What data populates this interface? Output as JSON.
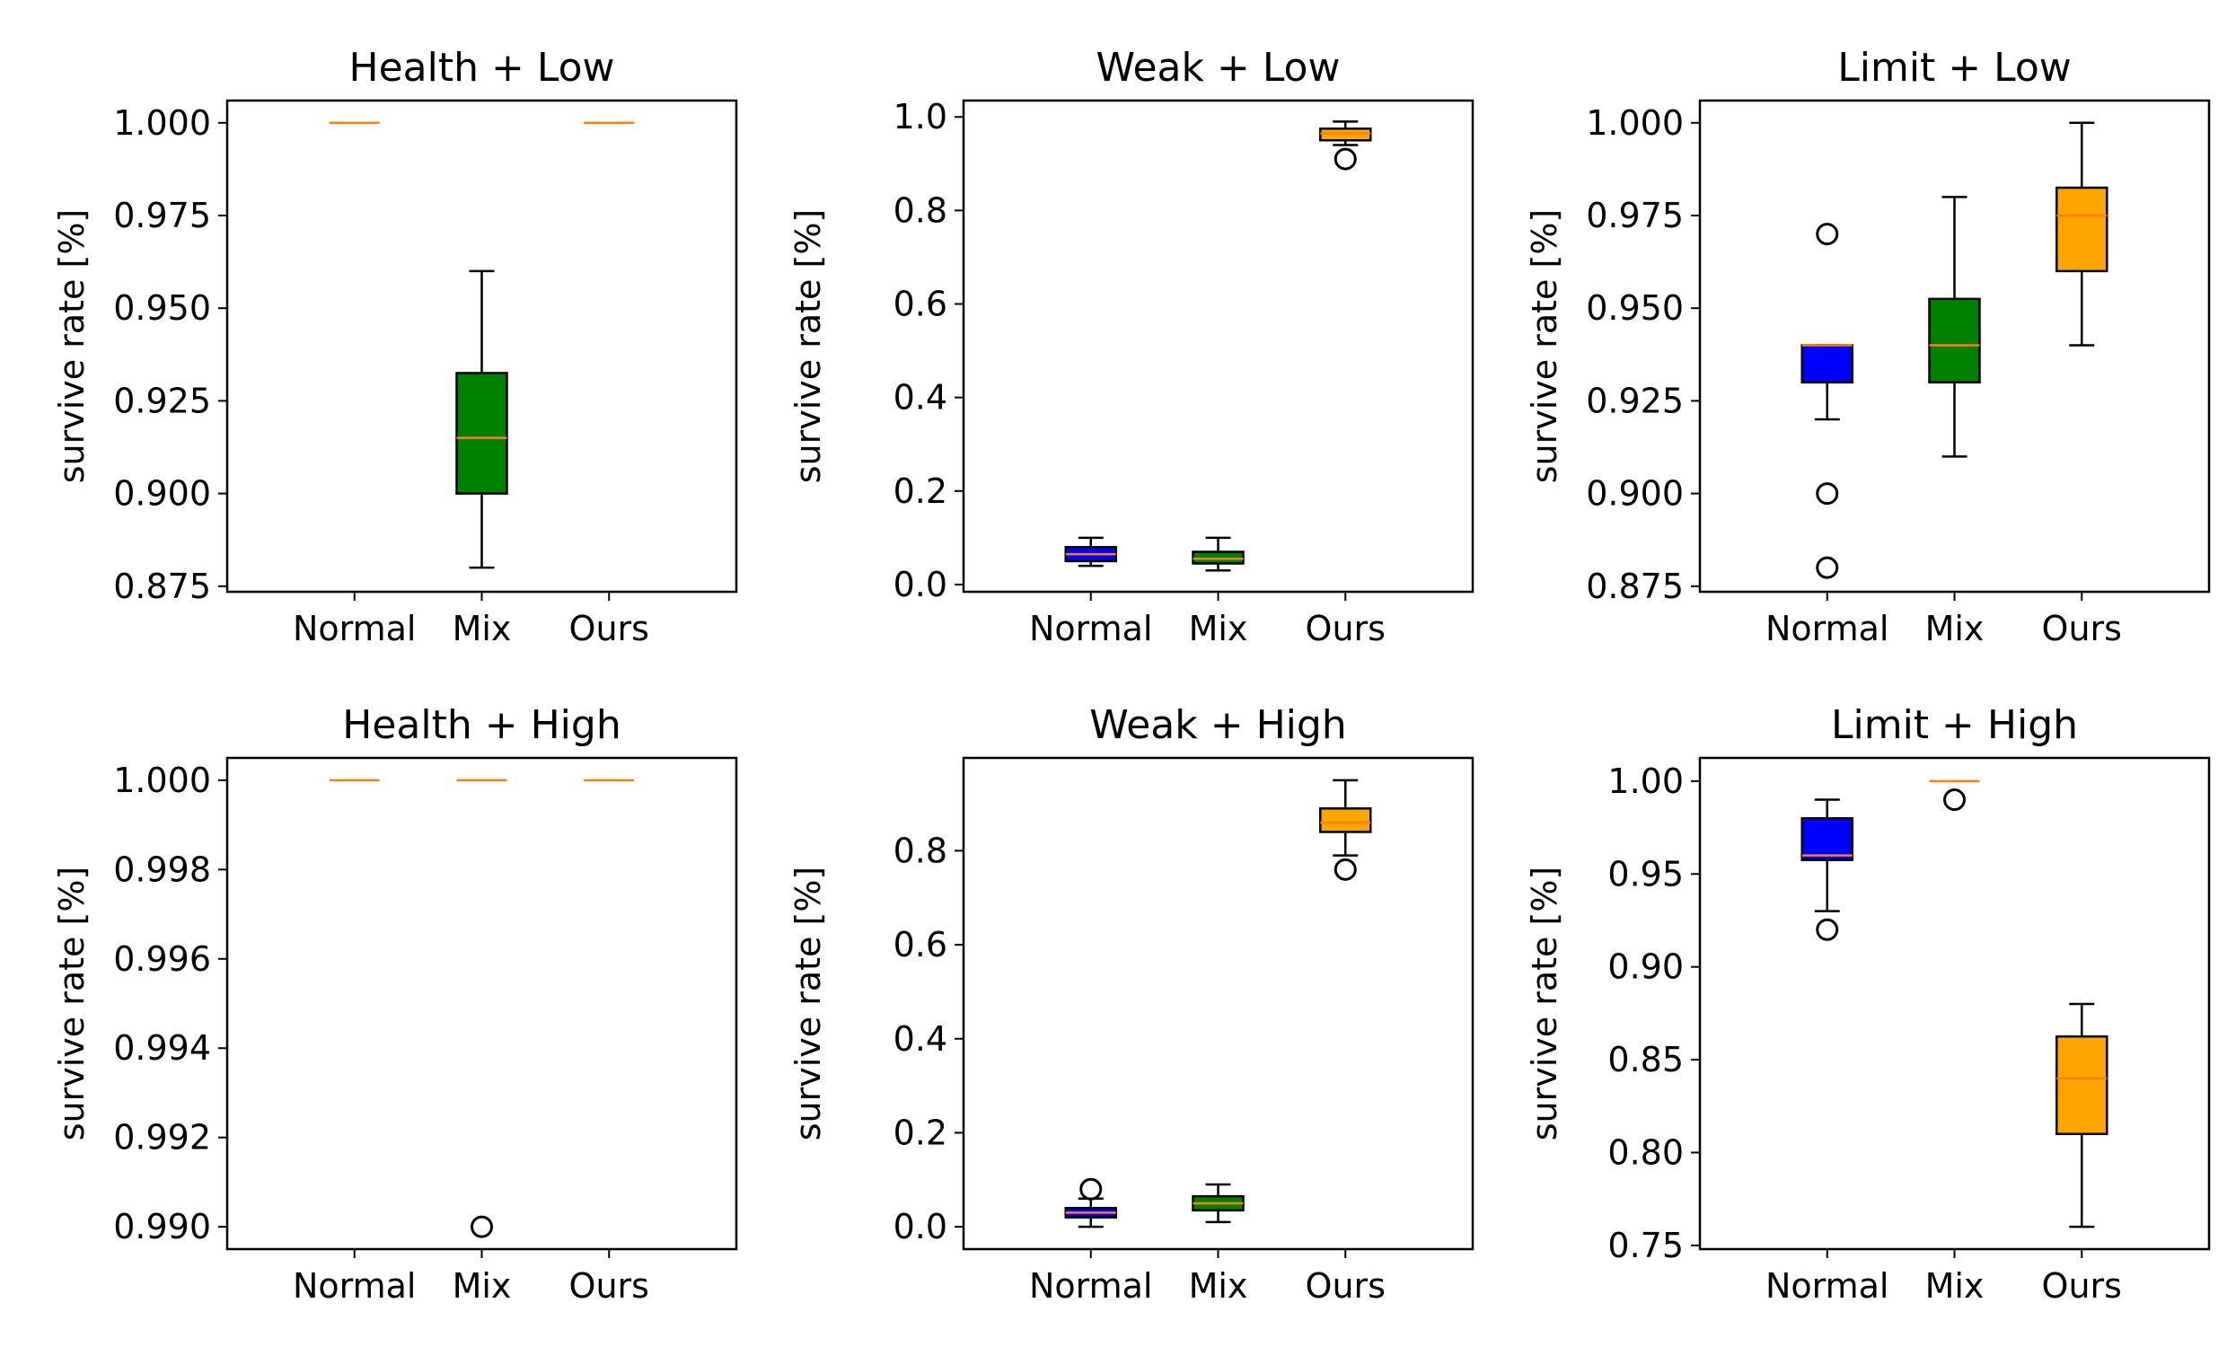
{
  "chart_data": [
    {
      "type": "box",
      "title": "Health + Low",
      "ylabel": "survive rate [%]",
      "categories": [
        "Normal",
        "Mix",
        "Ours"
      ],
      "yticks": [
        "0.875",
        "0.900",
        "0.925",
        "0.950",
        "0.975",
        "1.000"
      ],
      "ylim": [
        0.8735,
        1.006
      ],
      "boxes": [
        {
          "min": 1.0,
          "q1": 1.0,
          "median": 1.0,
          "q3": 1.0,
          "max": 1.0,
          "outliers": []
        },
        {
          "min": 0.88,
          "q1": 0.9,
          "median": 0.915,
          "q3": 0.9325,
          "max": 0.96,
          "outliers": []
        },
        {
          "min": 1.0,
          "q1": 1.0,
          "median": 1.0,
          "q3": 1.0,
          "max": 1.0,
          "outliers": []
        }
      ]
    },
    {
      "type": "box",
      "title": "Weak + Low",
      "ylabel": "survive rate [%]",
      "categories": [
        "Normal",
        "Mix",
        "Ours"
      ],
      "yticks": [
        "0.0",
        "0.2",
        "0.4",
        "0.6",
        "0.8",
        "1.0"
      ],
      "ylim": [
        -0.0155,
        1.035
      ],
      "boxes": [
        {
          "min": 0.04,
          "q1": 0.05,
          "median": 0.065,
          "q3": 0.08,
          "max": 0.1,
          "outliers": []
        },
        {
          "min": 0.03,
          "q1": 0.045,
          "median": 0.055,
          "q3": 0.07,
          "max": 0.1,
          "outliers": []
        },
        {
          "min": 0.94,
          "q1": 0.95,
          "median": 0.965,
          "q3": 0.975,
          "max": 0.99,
          "outliers": [
            0.91
          ]
        }
      ]
    },
    {
      "type": "box",
      "title": "Limit + Low",
      "ylabel": "survive rate [%]",
      "categories": [
        "Normal",
        "Mix",
        "Ours"
      ],
      "yticks": [
        "0.875",
        "0.900",
        "0.925",
        "0.950",
        "0.975",
        "1.000"
      ],
      "ylim": [
        0.8735,
        1.006
      ],
      "boxes": [
        {
          "min": 0.92,
          "q1": 0.93,
          "median": 0.94,
          "q3": 0.94,
          "max": 0.94,
          "outliers": [
            0.97,
            0.9,
            0.88
          ]
        },
        {
          "min": 0.91,
          "q1": 0.93,
          "median": 0.94,
          "q3": 0.9525,
          "max": 0.98,
          "outliers": []
        },
        {
          "min": 0.94,
          "q1": 0.96,
          "median": 0.975,
          "q3": 0.9825,
          "max": 1.0,
          "outliers": []
        }
      ]
    },
    {
      "type": "box",
      "title": "Health + High",
      "ylabel": "survive rate [%]",
      "categories": [
        "Normal",
        "Mix",
        "Ours"
      ],
      "yticks": [
        "0.990",
        "0.992",
        "0.994",
        "0.996",
        "0.998",
        "1.000"
      ],
      "ylim": [
        0.9895,
        1.0005
      ],
      "boxes": [
        {
          "min": 1.0,
          "q1": 1.0,
          "median": 1.0,
          "q3": 1.0,
          "max": 1.0,
          "outliers": []
        },
        {
          "min": 1.0,
          "q1": 1.0,
          "median": 1.0,
          "q3": 1.0,
          "max": 1.0,
          "outliers": [
            0.99
          ]
        },
        {
          "min": 1.0,
          "q1": 1.0,
          "median": 1.0,
          "q3": 1.0,
          "max": 1.0,
          "outliers": []
        }
      ]
    },
    {
      "type": "box",
      "title": "Weak + High",
      "ylabel": "survive rate [%]",
      "categories": [
        "Normal",
        "Mix",
        "Ours"
      ],
      "yticks": [
        "0.0",
        "0.2",
        "0.4",
        "0.6",
        "0.8"
      ],
      "ylim": [
        -0.0475,
        0.9975
      ],
      "boxes": [
        {
          "min": 0.0,
          "q1": 0.02,
          "median": 0.03,
          "q3": 0.04,
          "max": 0.06,
          "outliers": [
            0.08
          ]
        },
        {
          "min": 0.01,
          "q1": 0.035,
          "median": 0.05,
          "q3": 0.065,
          "max": 0.09,
          "outliers": []
        },
        {
          "min": 0.79,
          "q1": 0.84,
          "median": 0.86,
          "q3": 0.89,
          "max": 0.95,
          "outliers": [
            0.76
          ]
        }
      ]
    },
    {
      "type": "box",
      "title": "Limit + High",
      "ylabel": "survive rate [%]",
      "categories": [
        "Normal",
        "Mix",
        "Ours"
      ],
      "yticks": [
        "0.75",
        "0.80",
        "0.85",
        "0.90",
        "0.95",
        "1.00"
      ],
      "ylim": [
        0.748,
        1.0125
      ],
      "boxes": [
        {
          "min": 0.93,
          "q1": 0.9575,
          "median": 0.96,
          "q3": 0.98,
          "max": 0.99,
          "outliers": [
            0.92
          ]
        },
        {
          "min": 1.0,
          "q1": 1.0,
          "median": 1.0,
          "q3": 1.0,
          "max": 1.0,
          "outliers": [
            0.99
          ]
        },
        {
          "min": 0.76,
          "q1": 0.81,
          "median": 0.84,
          "q3": 0.8625,
          "max": 0.88,
          "outliers": []
        }
      ]
    }
  ],
  "colors": {
    "series": [
      "#0000ff",
      "#008000",
      "#ffa500"
    ],
    "median": "#ff7f0e",
    "edge": "#000000"
  }
}
